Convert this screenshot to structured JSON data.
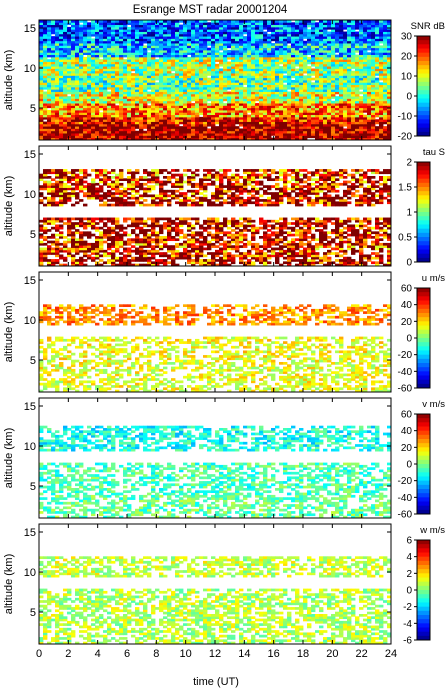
{
  "chart_data": {
    "type": "heatmap",
    "title": "Esrange MST radar 20001204",
    "xlabel": "time (UT)",
    "x_ticks": [
      0,
      2,
      4,
      6,
      8,
      10,
      12,
      14,
      16,
      18,
      20,
      22,
      24
    ],
    "xlim": [
      0,
      24
    ],
    "ylabel": "altitude (km)",
    "y_ticks": [
      5,
      10,
      15
    ],
    "ylim": [
      1,
      16
    ],
    "colormap": "jet",
    "colors": {
      "jet": [
        "#00007f",
        "#0000ff",
        "#007fff",
        "#00ffff",
        "#7fff7f",
        "#ffff00",
        "#ff7f00",
        "#ff0000",
        "#7f0000"
      ]
    },
    "panels": [
      {
        "name": "SNR",
        "colorbar_label": "SNR dB",
        "clim": [
          -20,
          30
        ],
        "cbar_ticks": [
          "30",
          "20",
          "10",
          "0",
          "-10",
          "-20"
        ],
        "layers": [
          {
            "alt_km": [
              1.0,
              3.0
            ],
            "value": 28
          },
          {
            "alt_km": [
              3.0,
              4.0
            ],
            "value": 24
          },
          {
            "alt_km": [
              4.0,
              5.5
            ],
            "value": 17
          },
          {
            "alt_km": [
              5.5,
              7.0
            ],
            "value": 10
          },
          {
            "alt_km": [
              7.0,
              9.0
            ],
            "value": 4
          },
          {
            "alt_km": [
              9.0,
              11.5
            ],
            "value": 7
          },
          {
            "alt_km": [
              11.5,
              13.0
            ],
            "value": -3
          },
          {
            "alt_km": [
              13.0,
              16.0
            ],
            "value": -9
          }
        ]
      },
      {
        "name": "tau",
        "colorbar_label": "tau S",
        "clim": [
          0,
          2
        ],
        "cbar_ticks": [
          "2",
          "1.5",
          "1",
          "0.5",
          "0"
        ],
        "layers": [
          {
            "alt_km": [
              1.0,
              2.2
            ],
            "value": 1.9
          },
          {
            "alt_km": [
              2.2,
              4.5
            ],
            "value": 1.85
          },
          {
            "alt_km": [
              4.5,
              7.0
            ],
            "value": 1.9
          },
          {
            "alt_km": [
              7.0,
              8.5
            ],
            "value": null
          },
          {
            "alt_km": [
              8.5,
              11.0
            ],
            "value": 1.9
          },
          {
            "alt_km": [
              11.0,
              13.0
            ],
            "value": 1.8
          },
          {
            "alt_km": [
              13.0,
              16.0
            ],
            "value": null
          }
        ]
      },
      {
        "name": "u",
        "colorbar_label": "u m/s",
        "clim": [
          -60,
          60
        ],
        "cbar_ticks": [
          "60",
          "40",
          "20",
          "0",
          "-20",
          "-40",
          "-60"
        ],
        "layers": [
          {
            "alt_km": [
              1.0,
              5.0
            ],
            "value": 12
          },
          {
            "alt_km": [
              5.0,
              8.0
            ],
            "value": 14
          },
          {
            "alt_km": [
              8.0,
              9.5
            ],
            "value": null
          },
          {
            "alt_km": [
              9.5,
              12.0
            ],
            "value": 28
          },
          {
            "alt_km": [
              12.0,
              16.0
            ],
            "value": null
          }
        ]
      },
      {
        "name": "v",
        "colorbar_label": "v m/s",
        "clim": [
          -60,
          60
        ],
        "cbar_ticks": [
          "60",
          "40",
          "20",
          "0",
          "-20",
          "-40",
          "-60"
        ],
        "layers": [
          {
            "alt_km": [
              1.0,
              4.0
            ],
            "value": -3
          },
          {
            "alt_km": [
              4.0,
              8.0
            ],
            "value": -6
          },
          {
            "alt_km": [
              8.0,
              9.5
            ],
            "value": null
          },
          {
            "alt_km": [
              9.5,
              12.5
            ],
            "value": -12
          },
          {
            "alt_km": [
              12.5,
              16.0
            ],
            "value": null
          }
        ]
      },
      {
        "name": "w",
        "colorbar_label": "w m/s",
        "clim": [
          -6,
          6
        ],
        "cbar_ticks": [
          "6",
          "4",
          "2",
          "0",
          "-2",
          "-4",
          "-6"
        ],
        "layers": [
          {
            "alt_km": [
              1.0,
              8.0
            ],
            "value": 0.6
          },
          {
            "alt_km": [
              8.0,
              9.5
            ],
            "value": null
          },
          {
            "alt_km": [
              9.5,
              12.0
            ],
            "value": 0.8
          },
          {
            "alt_km": [
              12.0,
              16.0
            ],
            "value": null
          }
        ]
      }
    ]
  }
}
